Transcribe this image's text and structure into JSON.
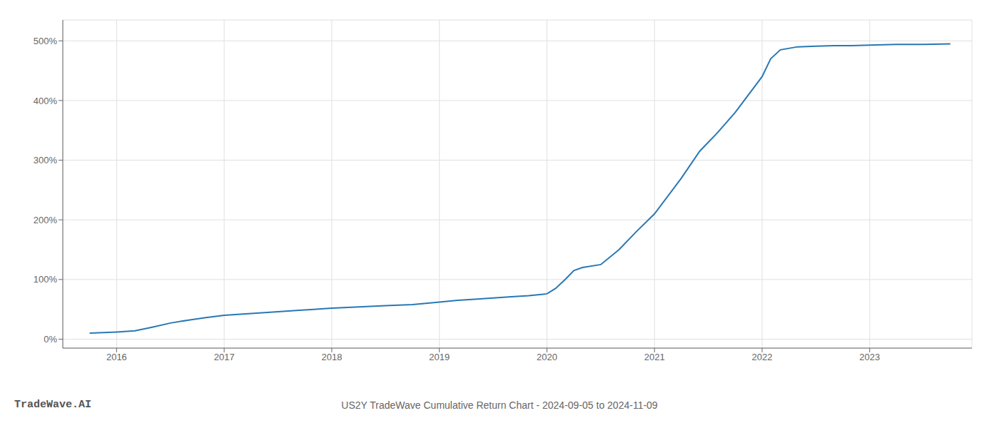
{
  "chart_data": {
    "type": "line",
    "title": "US2Y TradeWave Cumulative Return Chart - 2024-09-05 to 2024-11-09",
    "annotations": [
      "TradeWave.AI"
    ],
    "x": [
      2015.75,
      2016.0,
      2016.17,
      2016.33,
      2016.5,
      2016.67,
      2016.83,
      2017.0,
      2017.25,
      2017.5,
      2017.67,
      2017.83,
      2018.0,
      2018.25,
      2018.5,
      2018.75,
      2019.0,
      2019.17,
      2019.33,
      2019.5,
      2019.67,
      2019.83,
      2020.0,
      2020.08,
      2020.17,
      2020.25,
      2020.33,
      2020.5,
      2020.67,
      2020.83,
      2021.0,
      2021.25,
      2021.42,
      2021.58,
      2021.75,
      2022.0,
      2022.08,
      2022.17,
      2022.33,
      2022.5,
      2022.67,
      2022.83,
      2023.0,
      2023.25,
      2023.5,
      2023.75
    ],
    "values": [
      10,
      12,
      14,
      20,
      27,
      32,
      36,
      40,
      43,
      46,
      48,
      50,
      52,
      54,
      56,
      58,
      62,
      65,
      67,
      69,
      71,
      73,
      76,
      85,
      100,
      115,
      120,
      125,
      150,
      180,
      210,
      270,
      315,
      345,
      380,
      440,
      470,
      485,
      490,
      491,
      492,
      492,
      493,
      494,
      494,
      495
    ],
    "color": "#2878b5",
    "xlim": [
      2015.5,
      2023.95
    ],
    "xticks": [
      2016,
      2017,
      2018,
      2019,
      2020,
      2021,
      2022,
      2023
    ],
    "ylim": [
      -15,
      535
    ],
    "yticks": [
      {
        "value": 0,
        "label": "0%"
      },
      {
        "value": 100,
        "label": "100%"
      },
      {
        "value": 200,
        "label": "200%"
      },
      {
        "value": 300,
        "label": "300%"
      },
      {
        "value": 400,
        "label": "400%"
      },
      {
        "value": 500,
        "label": "500%"
      }
    ],
    "grid": true
  }
}
